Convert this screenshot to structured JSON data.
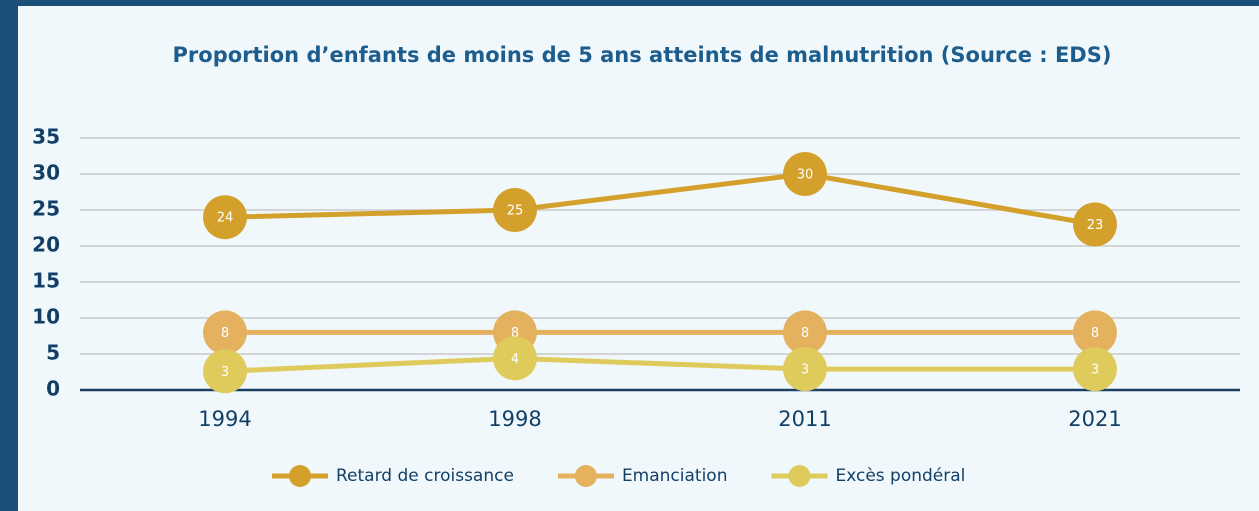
{
  "chart_data": {
    "type": "line",
    "title": "Proportion d’enfants de moins de 5 ans atteints de malnutrition (Source : EDS)",
    "categories": [
      "1994",
      "1998",
      "2011",
      "2021"
    ],
    "series": [
      {
        "name": "Retard de croissance",
        "color": "#d3a02b",
        "values": [
          24,
          25,
          30,
          23
        ]
      },
      {
        "name": "Emanciation",
        "color": "#e4b25f",
        "values": [
          8,
          8,
          8,
          8
        ]
      },
      {
        "name": "Excès pondéral",
        "color": "#dfcb5c",
        "values": [
          2.6,
          4.4,
          2.9,
          2.9
        ],
        "value_labels": [
          "3",
          "4",
          "3",
          "3"
        ]
      }
    ],
    "ylim": [
      0,
      35
    ],
    "yticks": [
      0,
      5,
      10,
      15,
      20,
      25,
      30,
      35
    ],
    "grid": true,
    "legend": "bottom"
  }
}
